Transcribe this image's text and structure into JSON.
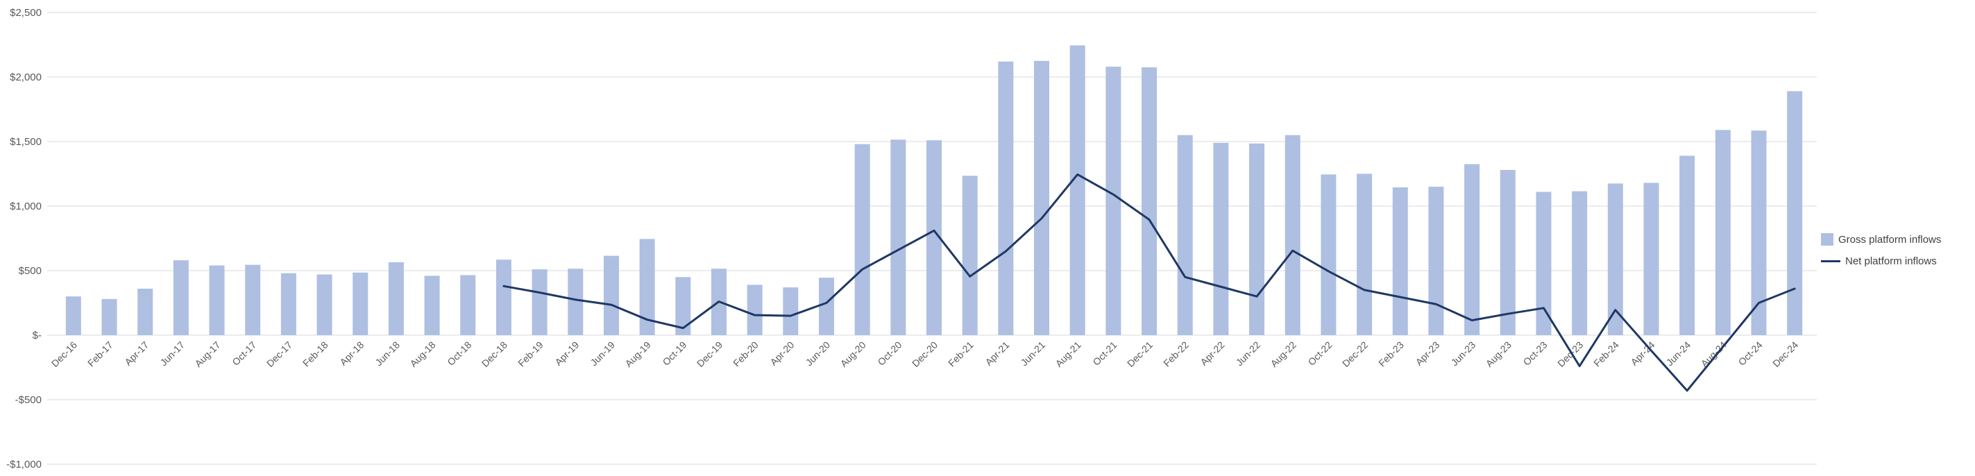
{
  "chart_data": {
    "type": "bar",
    "title": "",
    "xlabel": "",
    "ylabel": "",
    "grid": true,
    "legend_position": "right",
    "ylim": [
      -1000,
      2500
    ],
    "colors": {
      "grid": "#D9D9D9",
      "axis_text": "#595959",
      "background": "#FFFFFF"
    },
    "y_axis": {
      "ticks": [
        {
          "value": 2500,
          "label": "$2,500"
        },
        {
          "value": 2000,
          "label": "$2,000"
        },
        {
          "value": 1500,
          "label": "$1,500"
        },
        {
          "value": 1000,
          "label": "$1,000"
        },
        {
          "value": 500,
          "label": "$500"
        },
        {
          "value": 0,
          "label": "$-"
        },
        {
          "value": -500,
          "label": "-$500"
        },
        {
          "value": -1000,
          "label": "-$1,000"
        }
      ]
    },
    "categories": [
      "Dec-16",
      "Feb-17",
      "Apr-17",
      "Jun-17",
      "Aug-17",
      "Oct-17",
      "Dec-17",
      "Feb-18",
      "Apr-18",
      "Jun-18",
      "Aug-18",
      "Oct-18",
      "Dec-18",
      "Feb-19",
      "Apr-19",
      "Jun-19",
      "Aug-19",
      "Oct-19",
      "Dec-19",
      "Feb-20",
      "Apr-20",
      "Jun-20",
      "Aug-20",
      "Oct-20",
      "Dec-20",
      "Feb-21",
      "Apr-21",
      "Jun-21",
      "Aug-21",
      "Oct-21",
      "Dec-21",
      "Feb-22",
      "Apr-22",
      "Jun-22",
      "Aug-22",
      "Oct-22",
      "Dec-22",
      "Feb-23",
      "Apr-23",
      "Jun-23",
      "Aug-23",
      "Oct-23",
      "Dec-23",
      "Feb-24",
      "Apr-24",
      "Jun-24",
      "Aug-24",
      "Oct-24",
      "Dec-24"
    ],
    "series": [
      {
        "name": "Gross platform inflows",
        "type": "bar",
        "color": "#AEBFE2",
        "values": [
          300,
          280,
          360,
          580,
          540,
          545,
          480,
          470,
          485,
          565,
          460,
          465,
          585,
          510,
          515,
          615,
          745,
          450,
          515,
          390,
          370,
          445,
          1480,
          1515,
          1510,
          1235,
          2120,
          2125,
          2245,
          2080,
          2075,
          1550,
          1490,
          1485,
          1550,
          1245,
          1250,
          1145,
          1150,
          1325,
          1280,
          1110,
          1115,
          1175,
          1180,
          1390,
          1590,
          1585,
          1890
        ]
      },
      {
        "name": "Net platform inflows",
        "type": "line",
        "color": "#1F3864",
        "values": [
          null,
          null,
          null,
          null,
          null,
          null,
          null,
          null,
          null,
          null,
          null,
          null,
          380,
          330,
          275,
          235,
          120,
          55,
          260,
          155,
          150,
          250,
          510,
          660,
          810,
          455,
          650,
          905,
          1245,
          1090,
          895,
          450,
          375,
          300,
          655,
          495,
          350,
          295,
          240,
          115,
          165,
          210,
          -240,
          195,
          -120,
          -430,
          -90,
          250,
          360
        ]
      }
    ]
  }
}
